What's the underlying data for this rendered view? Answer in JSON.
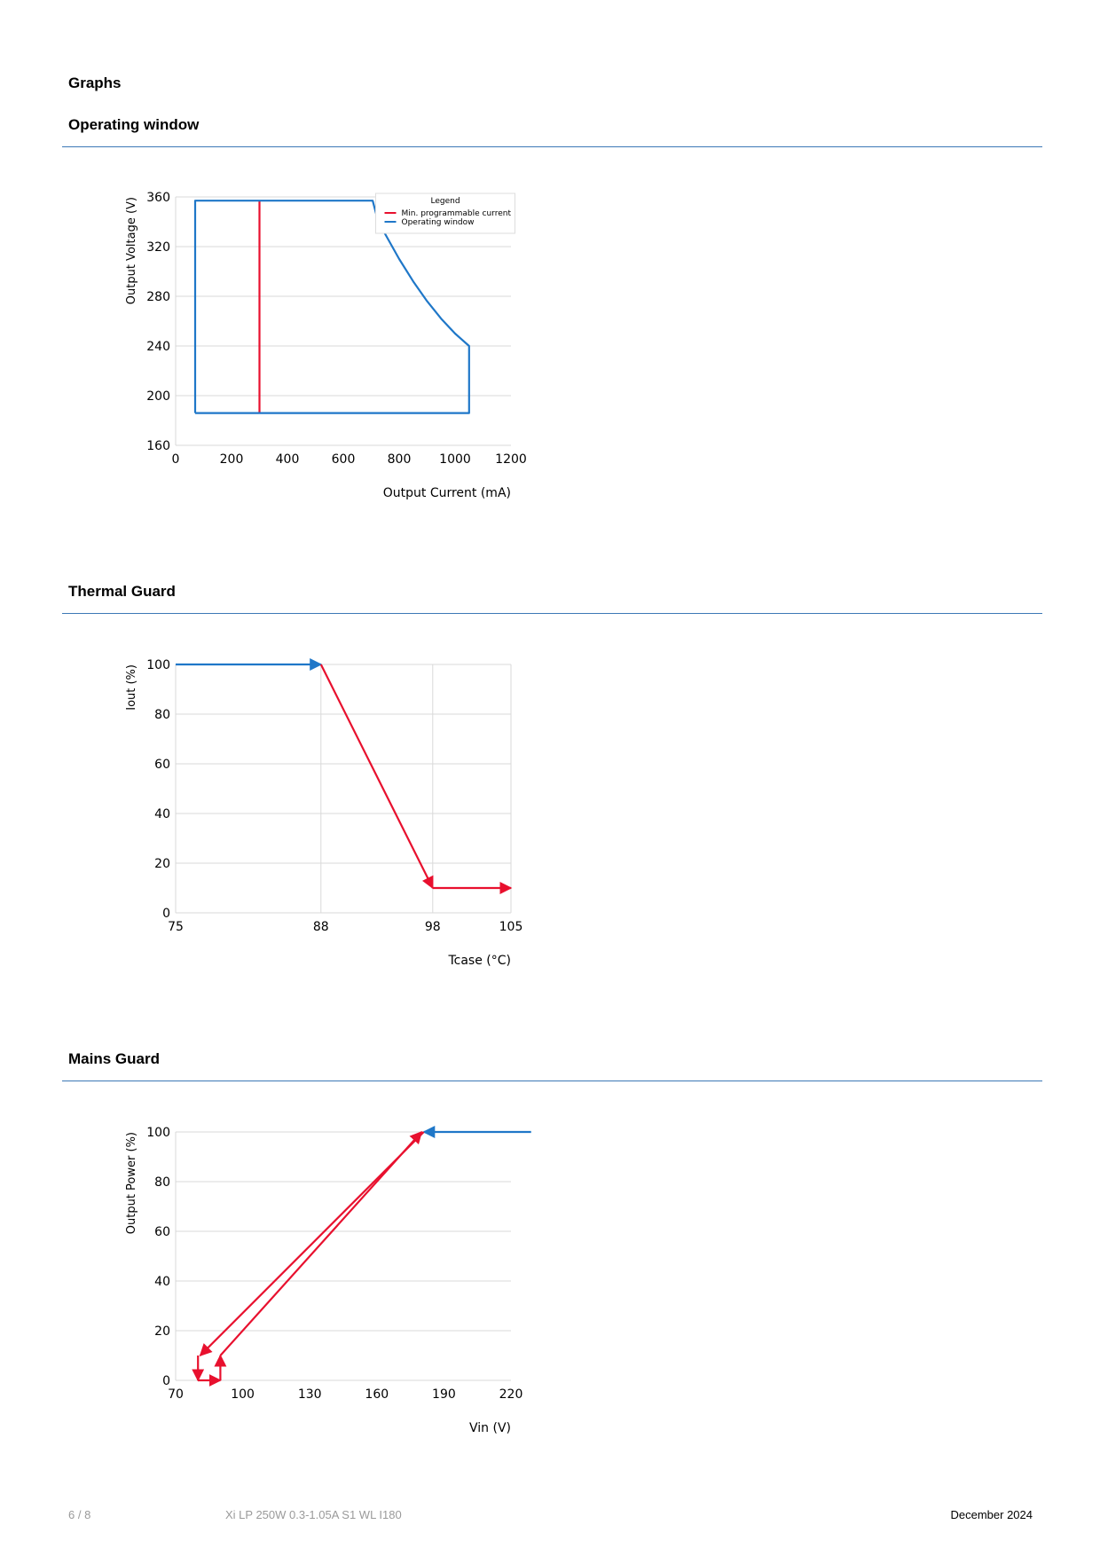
{
  "page": {
    "section_title": "Graphs",
    "footer": {
      "page_number": "6 / 8",
      "product": "Xi LP 250W 0.3-1.05A S1 WL I180",
      "date": "December 2024"
    }
  },
  "colors": {
    "blue": "#1f77c8",
    "red": "#e8102e",
    "rule": "#3c78b6",
    "grid": "#d9d9d9"
  },
  "sections": [
    {
      "title": "Operating window"
    },
    {
      "title": "Thermal Guard"
    },
    {
      "title": "Mains Guard"
    }
  ],
  "chart_data": [
    {
      "type": "line",
      "xlabel": "Output Current (mA)",
      "ylabel": "Output Voltage (V)",
      "xlim": [
        0,
        1200
      ],
      "ylim": [
        160,
        360
      ],
      "xticks": [
        0,
        200,
        400,
        600,
        800,
        1000,
        1200
      ],
      "yticks": [
        160,
        200,
        240,
        280,
        320,
        360
      ],
      "grid": "horizontal",
      "legend": {
        "title": "Legend",
        "position": "top-right",
        "entries": [
          "Min. programmable current",
          "Operating window"
        ]
      },
      "series": [
        {
          "name": "Min. programmable current",
          "color": "red",
          "points": [
            [
              300,
              186
            ],
            [
              300,
              357
            ]
          ]
        },
        {
          "name": "Operating window",
          "color": "blue",
          "points": [
            [
              70,
              186
            ],
            [
              70,
              357
            ],
            [
              705,
              357
            ],
            [
              725,
              340
            ],
            [
              750,
              330
            ],
            [
              800,
              310
            ],
            [
              850,
              292
            ],
            [
              900,
              276
            ],
            [
              950,
              262
            ],
            [
              1000,
              250
            ],
            [
              1050,
              240
            ],
            [
              1050,
              186
            ],
            [
              70,
              186
            ]
          ]
        }
      ]
    },
    {
      "type": "line",
      "xlabel": "Tcase (°C)",
      "ylabel": "Iout (%)",
      "xlim": [
        75,
        105
      ],
      "ylim": [
        0,
        100
      ],
      "xticks": [
        75,
        88,
        98,
        105
      ],
      "yticks": [
        0,
        20,
        40,
        60,
        80,
        100
      ],
      "grid": "both",
      "series": [
        {
          "color": "blue",
          "points": [
            [
              75,
              100
            ],
            [
              88,
              100
            ]
          ],
          "arrow_end": true
        },
        {
          "color": "red",
          "points": [
            [
              88,
              100
            ],
            [
              98,
              10
            ]
          ],
          "arrow_end": true
        },
        {
          "color": "red",
          "points": [
            [
              98,
              10
            ],
            [
              105,
              10
            ]
          ],
          "arrow_end": true
        }
      ]
    },
    {
      "type": "line",
      "xlabel": "Vin (V)",
      "ylabel": "Output Power (%)",
      "xlim": [
        70,
        220
      ],
      "ylim": [
        0,
        100
      ],
      "xticks": [
        70,
        100,
        130,
        160,
        190,
        220
      ],
      "yticks": [
        0,
        20,
        40,
        60,
        80,
        100
      ],
      "grid": "horizontal",
      "series": [
        {
          "color": "blue",
          "points": [
            [
              229,
              100
            ],
            [
              181,
              100
            ]
          ],
          "arrow_end": true
        },
        {
          "color": "red",
          "points": [
            [
              181,
              100
            ],
            [
              81,
              10
            ]
          ],
          "arrow_end": true
        },
        {
          "color": "red",
          "points": [
            [
              80,
              10
            ],
            [
              80,
              0
            ]
          ],
          "arrow_end": true
        },
        {
          "color": "red",
          "points": [
            [
              80,
              0
            ],
            [
              90,
              0
            ]
          ],
          "arrow_end": true
        },
        {
          "color": "red",
          "points": [
            [
              90,
              0
            ],
            [
              90,
              10
            ]
          ],
          "arrow_end": true
        },
        {
          "color": "red",
          "points": [
            [
              90,
              10
            ],
            [
              180,
              100
            ]
          ],
          "arrow_end": true
        }
      ]
    }
  ]
}
